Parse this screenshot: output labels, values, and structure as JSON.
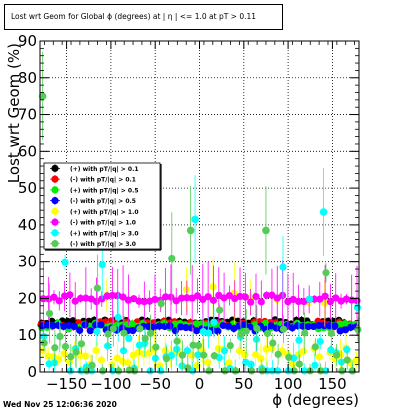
{
  "chart_data": {
    "type": "scatter",
    "title": "Lost wrt Geom for Global ϕ (degrees) at | η | <= 1.0 at pT > 0.11",
    "xlabel": "ϕ (degrees)",
    "ylabel": "Lost wrt Geom (%)",
    "xlim": [
      -180,
      180
    ],
    "ylim": [
      0,
      90
    ],
    "x_ticks": [
      -150,
      -100,
      -50,
      0,
      50,
      100,
      150
    ],
    "x_tick_labels": [
      "−150",
      "−100",
      "−50",
      "0",
      "50",
      "100",
      "150"
    ],
    "y_ticks": [
      0,
      10,
      20,
      30,
      40,
      50,
      60,
      70,
      80,
      90
    ],
    "y_tick_labels": [
      "0",
      "10",
      "20",
      "30",
      "40",
      "50",
      "60",
      "70",
      "80",
      "90"
    ],
    "grid": true,
    "legend_position": "left",
    "series": [
      {
        "name": "(+) with pT/|q| > 0.1",
        "color": "#000000",
        "level": 13.5,
        "spread": 0.7
      },
      {
        "name": "(-) with pT/|q| > 0.1",
        "color": "#ff0000",
        "level": 13.0,
        "spread": 0.8
      },
      {
        "name": "(+) with pT/|q| > 0.5",
        "color": "#00ee00",
        "level": 12.5,
        "spread": 0.8
      },
      {
        "name": "(-) with pT/|q| > 0.5",
        "color": "#0000ff",
        "level": 12.0,
        "spread": 0.9
      },
      {
        "name": "(+) with pT/|q| > 1.0",
        "color": "#ffff00",
        "level": 4.0,
        "spread": 2.5
      },
      {
        "name": "(-) with pT/|q| > 1.0",
        "color": "#ff00ff",
        "level": 20.0,
        "spread": 1.0
      },
      {
        "name": "(+) with pT/|q| > 3.0",
        "color": "#00ffff",
        "level": 3.5,
        "spread": 8.0
      },
      {
        "name": "(-) with pT/|q| > 3.0",
        "color": "#55cc55",
        "level": 4.0,
        "spread": 8.0
      }
    ],
    "highlights": [
      {
        "series": 7,
        "x": -177,
        "y": 75
      },
      {
        "series": 6,
        "x": -5,
        "y": 41.5
      },
      {
        "series": 6,
        "x": 140,
        "y": 43.5
      },
      {
        "series": 7,
        "x": 75,
        "y": 38.5
      },
      {
        "series": 7,
        "x": -10,
        "y": 38.5
      }
    ]
  },
  "timestamp": "Wed Nov 25 12:06:36 2020"
}
